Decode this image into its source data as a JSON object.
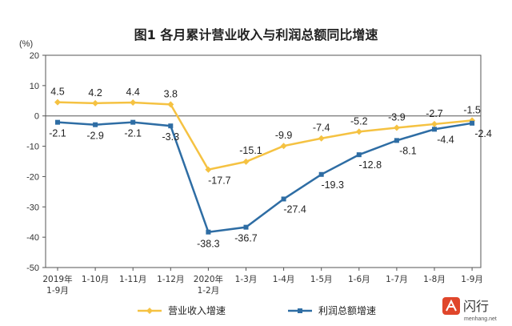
{
  "chart_data": {
    "type": "line",
    "title": "图1  各月累计营业收入与利润总额同比增速",
    "ylabel": "(%)",
    "ylim": [
      -50,
      20
    ],
    "yticks": [
      20,
      10,
      0,
      -10,
      -20,
      -30,
      -40,
      -50
    ],
    "grid": false,
    "legend_position": "bottom",
    "categories": [
      [
        "2019年",
        "1-9月"
      ],
      [
        "1-10月"
      ],
      [
        "1-11月"
      ],
      [
        "1-12月"
      ],
      [
        "2020年",
        "1-2月"
      ],
      [
        "1-3月"
      ],
      [
        "1-4月"
      ],
      [
        "1-5月"
      ],
      [
        "1-6月"
      ],
      [
        "1-7月"
      ],
      [
        "1-8月"
      ],
      [
        "1-9月"
      ]
    ],
    "series": [
      {
        "name": "营业收入增速",
        "color": "#F5C242",
        "values": [
          4.5,
          4.2,
          4.4,
          3.8,
          -17.7,
          -15.1,
          -9.9,
          -7.4,
          -5.2,
          -3.9,
          -2.7,
          -1.5
        ],
        "labels": [
          "4.5",
          "4.2",
          "4.4",
          "3.8",
          "-17.7",
          "-15.1",
          "-9.9",
          "-7.4",
          "-5.2",
          "-3.9",
          "-2.7",
          "-1.5"
        ]
      },
      {
        "name": "利润总额增速",
        "color": "#2E6DA4",
        "values": [
          -2.1,
          -2.9,
          -2.1,
          -3.3,
          -38.3,
          -36.7,
          -27.4,
          -19.3,
          -12.8,
          -8.1,
          -4.4,
          -2.4
        ],
        "labels": [
          "-2.1",
          "-2.9",
          "-2.1",
          "-3.3",
          "-38.3",
          "-36.7",
          "-27.4",
          "-19.3",
          "-12.8",
          "-8.1",
          "-4.4",
          "-2.4"
        ]
      }
    ]
  },
  "watermark": {
    "text": "闪行",
    "subtext": "menhang.net"
  }
}
